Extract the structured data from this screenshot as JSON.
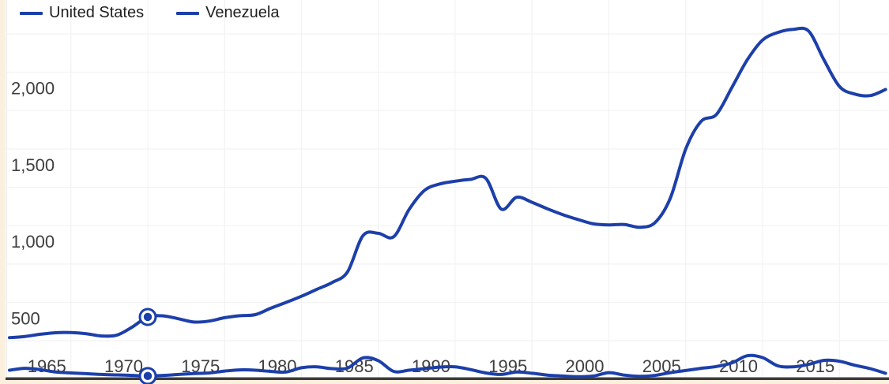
{
  "legend": {
    "items": [
      {
        "label": "United States"
      },
      {
        "label": "Venezuela"
      }
    ]
  },
  "chart_data": {
    "type": "line",
    "title": "",
    "xlabel": "",
    "ylabel": "",
    "legend_position": "top-left",
    "grid": true,
    "curve": "smooth",
    "selected_year": 1970,
    "x": [
      1961,
      1962,
      1963,
      1964,
      1965,
      1966,
      1967,
      1968,
      1969,
      1970,
      1971,
      1972,
      1973,
      1974,
      1975,
      1976,
      1977,
      1978,
      1979,
      1980,
      1981,
      1982,
      1983,
      1984,
      1985,
      1986,
      1987,
      1988,
      1989,
      1990,
      1991,
      1992,
      1993,
      1994,
      1995,
      1996,
      1997,
      1998,
      1999,
      2000,
      2001,
      2002,
      2003,
      2004,
      2005,
      2006,
      2007,
      2008,
      2009,
      2010,
      2011,
      2012,
      2013,
      2014,
      2015,
      2016,
      2017,
      2018
    ],
    "series": [
      {
        "name": "United States",
        "color": "#1c3faa",
        "values": [
          270,
          278,
          292,
          302,
          303,
          296,
          281,
          287,
          340,
          405,
          412,
          393,
          372,
          378,
          400,
          413,
          420,
          462,
          500,
          540,
          585,
          630,
          700,
          935,
          950,
          928,
          1105,
          1230,
          1272,
          1290,
          1302,
          1308,
          1108,
          1185,
          1152,
          1110,
          1072,
          1040,
          1012,
          1005,
          1008,
          990,
          1020,
          1180,
          1500,
          1680,
          1725,
          1900,
          2080,
          2210,
          2260,
          2280,
          2268,
          2080,
          1908,
          1858,
          1848,
          1888
        ]
      },
      {
        "name": "Venezuela",
        "color": "#1c3faa",
        "values": [
          58,
          70,
          62,
          46,
          40,
          35,
          30,
          27,
          24,
          20,
          24,
          30,
          36,
          40,
          52,
          60,
          58,
          50,
          46,
          74,
          80,
          68,
          72,
          138,
          120,
          50,
          58,
          68,
          78,
          80,
          62,
          40,
          30,
          46,
          38,
          26,
          20,
          15,
          20,
          42,
          26,
          18,
          24,
          42,
          56,
          70,
          82,
          105,
          152,
          140,
          86,
          80,
          96,
          122,
          116,
          90,
          68,
          38
        ]
      }
    ],
    "x_axis": {
      "ticks": [
        1965,
        1970,
        1975,
        1980,
        1985,
        1990,
        1995,
        2000,
        2005,
        2010,
        2015
      ],
      "tick_labels": [
        "1965",
        "1970",
        "1975",
        "1980",
        "1985",
        "1990",
        "1995",
        "2000",
        "2005",
        "2010",
        "2015"
      ],
      "range": [
        1960.5,
        2018.3
      ]
    },
    "y_axis": {
      "ticks": [
        500,
        1000,
        1500,
        2000
      ],
      "tick_labels": [
        "500",
        "1,000",
        "1,500",
        "2,000"
      ],
      "minor_step": 250,
      "max_gridline": 2250,
      "range": [
        0,
        2470
      ]
    }
  },
  "colors": {
    "series_blue": "#1c3faa",
    "gridline": "#f2f2f2",
    "plot_edge": "#e9e9e9",
    "axis_text": "#3e3e3e",
    "legend_text": "#1f1f1f",
    "axis_line_dark": "#3b3b3b",
    "axis_line_light": "#9d9d9d",
    "frame": "#fbf0de",
    "background": "#ffffff"
  }
}
